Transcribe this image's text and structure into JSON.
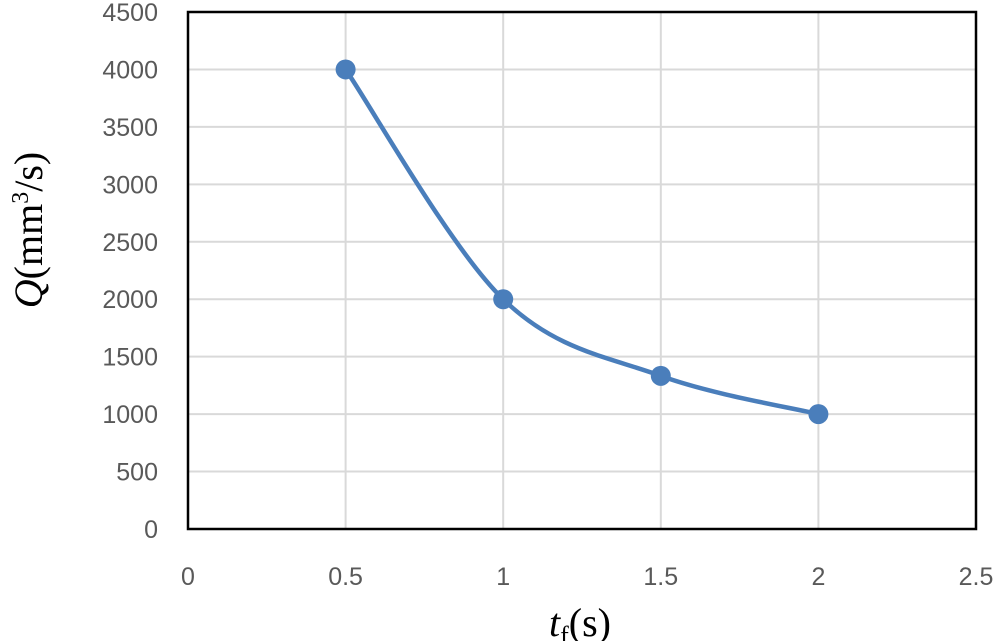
{
  "chart_data": {
    "type": "scatter",
    "title": "",
    "x": [
      0.5,
      1,
      1.5,
      2
    ],
    "series": [
      {
        "values": [
          4000,
          2000,
          1333,
          1000
        ],
        "color": "#4a7ebb",
        "smooth": true,
        "markers": true
      }
    ],
    "xlim": [
      0,
      2.5
    ],
    "ylim": [
      0,
      4500
    ],
    "x_ticks": [
      0,
      0.5,
      1,
      1.5,
      2,
      2.5
    ],
    "y_ticks": [
      0,
      500,
      1000,
      1500,
      2000,
      2500,
      3000,
      3500,
      4000,
      4500
    ],
    "x_tick_labels": [
      "0",
      "0.5",
      "1",
      "1.5",
      "2",
      "2.5"
    ],
    "y_tick_labels": [
      "0",
      "500",
      "1000",
      "1500",
      "2000",
      "2500",
      "3000",
      "3500",
      "4000",
      "4500"
    ],
    "xlabel": {
      "symbol": "t",
      "subscript": "f",
      "unit": "(s)"
    },
    "ylabel": {
      "symbol": "Q",
      "prefix": "(mm",
      "superscript": "3",
      "suffix": "/s)"
    },
    "grid": true,
    "grid_color": "#d9d9d9",
    "legend": "none"
  }
}
